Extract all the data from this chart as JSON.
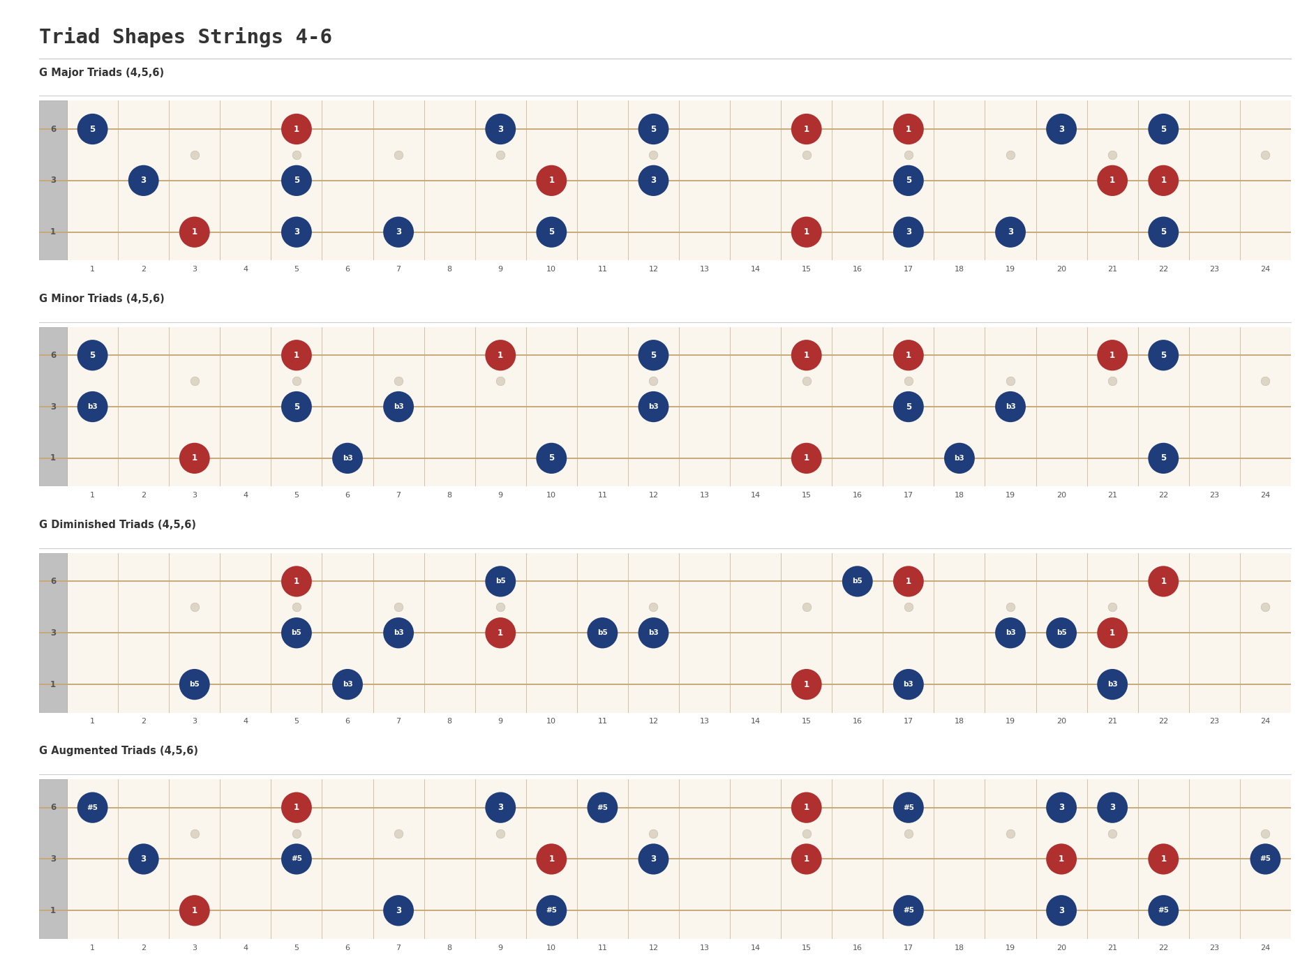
{
  "title": "Triad Shapes Strings 4-6",
  "bg": "#ffffff",
  "fb_bg": "#faf6ee",
  "fret_line_color": "#c8b89a",
  "string_color": "#c8a87a",
  "nut_bg": "#b8b8b8",
  "nut_text": "#555555",
  "inlay_color": "#ddd5c5",
  "inlay_edge": "#c8c0b0",
  "cell_text_color": "#c8b89a",
  "fret_count": 24,
  "inlay_frets": [
    3,
    5,
    7,
    9,
    12,
    15,
    17,
    19,
    21,
    24
  ],
  "blue": "#1e3d7a",
  "red": "#b03030",
  "string_names_top_to_bot": [
    "6",
    "3",
    "1"
  ],
  "sections": [
    {
      "title": "G Major Triads (4,5,6)",
      "notes": [
        {
          "fret": 1,
          "string": 1,
          "label": "5",
          "color": "blue"
        },
        {
          "fret": 2,
          "string": 2,
          "label": "3",
          "color": "blue"
        },
        {
          "fret": 3,
          "string": 3,
          "label": "1",
          "color": "red"
        },
        {
          "fret": 5,
          "string": 1,
          "label": "1",
          "color": "red"
        },
        {
          "fret": 5,
          "string": 2,
          "label": "5",
          "color": "blue"
        },
        {
          "fret": 5,
          "string": 3,
          "label": "3",
          "color": "blue"
        },
        {
          "fret": 7,
          "string": 3,
          "label": "3",
          "color": "blue"
        },
        {
          "fret": 9,
          "string": 1,
          "label": "3",
          "color": "blue"
        },
        {
          "fret": 10,
          "string": 2,
          "label": "1",
          "color": "red"
        },
        {
          "fret": 10,
          "string": 3,
          "label": "5",
          "color": "blue"
        },
        {
          "fret": 12,
          "string": 1,
          "label": "5",
          "color": "blue"
        },
        {
          "fret": 12,
          "string": 2,
          "label": "3",
          "color": "blue"
        },
        {
          "fret": 15,
          "string": 3,
          "label": "1",
          "color": "red"
        },
        {
          "fret": 15,
          "string": 1,
          "label": "1",
          "color": "red"
        },
        {
          "fret": 17,
          "string": 1,
          "label": "1",
          "color": "red"
        },
        {
          "fret": 17,
          "string": 2,
          "label": "5",
          "color": "blue"
        },
        {
          "fret": 17,
          "string": 3,
          "label": "3",
          "color": "blue"
        },
        {
          "fret": 19,
          "string": 3,
          "label": "3",
          "color": "blue"
        },
        {
          "fret": 20,
          "string": 1,
          "label": "3",
          "color": "blue"
        },
        {
          "fret": 21,
          "string": 2,
          "label": "1",
          "color": "red"
        },
        {
          "fret": 22,
          "string": 1,
          "label": "5",
          "color": "blue"
        },
        {
          "fret": 22,
          "string": 3,
          "label": "5",
          "color": "blue"
        },
        {
          "fret": 22,
          "string": 2,
          "label": "1",
          "color": "red"
        }
      ]
    },
    {
      "title": "G Minor Triads (4,5,6)",
      "notes": [
        {
          "fret": 1,
          "string": 1,
          "label": "5",
          "color": "blue"
        },
        {
          "fret": 1,
          "string": 2,
          "label": "b3",
          "color": "blue"
        },
        {
          "fret": 3,
          "string": 3,
          "label": "1",
          "color": "red"
        },
        {
          "fret": 5,
          "string": 1,
          "label": "1",
          "color": "red"
        },
        {
          "fret": 5,
          "string": 2,
          "label": "5",
          "color": "blue"
        },
        {
          "fret": 6,
          "string": 3,
          "label": "b3",
          "color": "blue"
        },
        {
          "fret": 7,
          "string": 2,
          "label": "b3",
          "color": "blue"
        },
        {
          "fret": 9,
          "string": 1,
          "label": "1",
          "color": "red"
        },
        {
          "fret": 10,
          "string": 3,
          "label": "5",
          "color": "blue"
        },
        {
          "fret": 12,
          "string": 1,
          "label": "5",
          "color": "blue"
        },
        {
          "fret": 12,
          "string": 2,
          "label": "b3",
          "color": "blue"
        },
        {
          "fret": 15,
          "string": 3,
          "label": "1",
          "color": "red"
        },
        {
          "fret": 15,
          "string": 1,
          "label": "1",
          "color": "red"
        },
        {
          "fret": 17,
          "string": 1,
          "label": "1",
          "color": "red"
        },
        {
          "fret": 17,
          "string": 2,
          "label": "5",
          "color": "blue"
        },
        {
          "fret": 18,
          "string": 3,
          "label": "b3",
          "color": "blue"
        },
        {
          "fret": 19,
          "string": 2,
          "label": "b3",
          "color": "blue"
        },
        {
          "fret": 21,
          "string": 1,
          "label": "1",
          "color": "red"
        },
        {
          "fret": 22,
          "string": 1,
          "label": "5",
          "color": "blue"
        },
        {
          "fret": 22,
          "string": 3,
          "label": "5",
          "color": "blue"
        }
      ]
    },
    {
      "title": "G Diminished Triads (4,5,6)",
      "notes": [
        {
          "fret": 3,
          "string": 3,
          "label": "b5",
          "color": "blue"
        },
        {
          "fret": 5,
          "string": 1,
          "label": "1",
          "color": "red"
        },
        {
          "fret": 5,
          "string": 2,
          "label": "b5",
          "color": "blue"
        },
        {
          "fret": 6,
          "string": 3,
          "label": "b3",
          "color": "blue"
        },
        {
          "fret": 7,
          "string": 2,
          "label": "b3",
          "color": "blue"
        },
        {
          "fret": 9,
          "string": 1,
          "label": "b5",
          "color": "blue"
        },
        {
          "fret": 9,
          "string": 2,
          "label": "1",
          "color": "red"
        },
        {
          "fret": 11,
          "string": 2,
          "label": "b5",
          "color": "blue"
        },
        {
          "fret": 12,
          "string": 2,
          "label": "b3",
          "color": "blue"
        },
        {
          "fret": 15,
          "string": 3,
          "label": "1",
          "color": "red"
        },
        {
          "fret": 16,
          "string": 1,
          "label": "b5",
          "color": "blue"
        },
        {
          "fret": 17,
          "string": 1,
          "label": "1",
          "color": "red"
        },
        {
          "fret": 17,
          "string": 3,
          "label": "b3",
          "color": "blue"
        },
        {
          "fret": 19,
          "string": 2,
          "label": "b3",
          "color": "blue"
        },
        {
          "fret": 20,
          "string": 2,
          "label": "b5",
          "color": "blue"
        },
        {
          "fret": 21,
          "string": 2,
          "label": "1",
          "color": "red"
        },
        {
          "fret": 21,
          "string": 3,
          "label": "b3",
          "color": "blue"
        },
        {
          "fret": 22,
          "string": 1,
          "label": "1",
          "color": "red"
        }
      ]
    },
    {
      "title": "G Augmented Triads (4,5,6)",
      "notes": [
        {
          "fret": 1,
          "string": 1,
          "label": "#5",
          "color": "blue"
        },
        {
          "fret": 2,
          "string": 2,
          "label": "3",
          "color": "blue"
        },
        {
          "fret": 3,
          "string": 3,
          "label": "1",
          "color": "red"
        },
        {
          "fret": 5,
          "string": 1,
          "label": "1",
          "color": "red"
        },
        {
          "fret": 5,
          "string": 2,
          "label": "#5",
          "color": "blue"
        },
        {
          "fret": 7,
          "string": 3,
          "label": "3",
          "color": "blue"
        },
        {
          "fret": 9,
          "string": 1,
          "label": "3",
          "color": "blue"
        },
        {
          "fret": 10,
          "string": 2,
          "label": "1",
          "color": "red"
        },
        {
          "fret": 10,
          "string": 3,
          "label": "#5",
          "color": "blue"
        },
        {
          "fret": 11,
          "string": 1,
          "label": "#5",
          "color": "blue"
        },
        {
          "fret": 12,
          "string": 2,
          "label": "3",
          "color": "blue"
        },
        {
          "fret": 15,
          "string": 2,
          "label": "1",
          "color": "red"
        },
        {
          "fret": 15,
          "string": 1,
          "label": "1",
          "color": "red"
        },
        {
          "fret": 17,
          "string": 1,
          "label": "#5",
          "color": "blue"
        },
        {
          "fret": 17,
          "string": 3,
          "label": "#5",
          "color": "blue"
        },
        {
          "fret": 20,
          "string": 1,
          "label": "3",
          "color": "blue"
        },
        {
          "fret": 20,
          "string": 2,
          "label": "1",
          "color": "red"
        },
        {
          "fret": 20,
          "string": 3,
          "label": "3",
          "color": "blue"
        },
        {
          "fret": 21,
          "string": 1,
          "label": "3",
          "color": "blue"
        },
        {
          "fret": 22,
          "string": 2,
          "label": "1",
          "color": "red"
        },
        {
          "fret": 22,
          "string": 3,
          "label": "#5",
          "color": "blue"
        },
        {
          "fret": 24,
          "string": 2,
          "label": "#5",
          "color": "blue"
        }
      ]
    }
  ]
}
